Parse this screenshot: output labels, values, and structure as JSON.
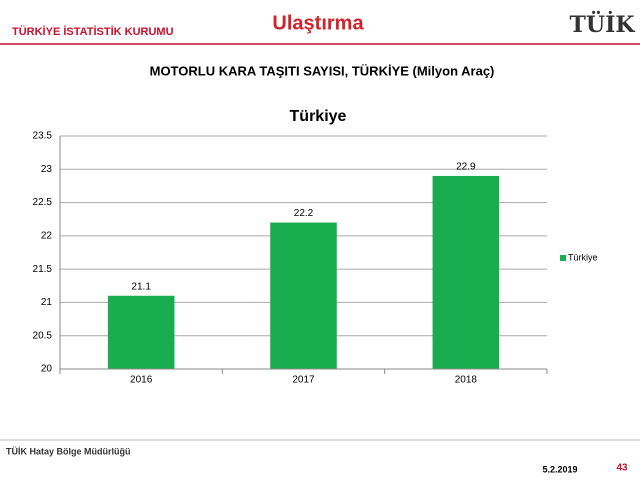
{
  "header": {
    "organization": "TÜRKİYE İSTATİSTİK KURUMU",
    "section": "Ulaştırma",
    "logo": "TÜİK"
  },
  "chart_data": {
    "type": "bar",
    "heading": "MOTORLU KARA TAŞITI SAYISI, TÜRKİYE (Milyon Araç)",
    "title": "Türkiye",
    "categories": [
      "2016",
      "2017",
      "2018"
    ],
    "series": [
      {
        "name": "Türkiye",
        "color": "#1aad4f",
        "values": [
          21.1,
          22.2,
          22.9
        ]
      }
    ],
    "ylim": [
      20,
      23.5
    ],
    "yticks": [
      20,
      20.5,
      21,
      21.5,
      22,
      22.5,
      23,
      23.5
    ],
    "grid": true,
    "legend": "right"
  },
  "footer": {
    "office": "TÜİK Hatay Bölge Müdürlüğü",
    "date": "5.2.2019",
    "page": "43"
  }
}
